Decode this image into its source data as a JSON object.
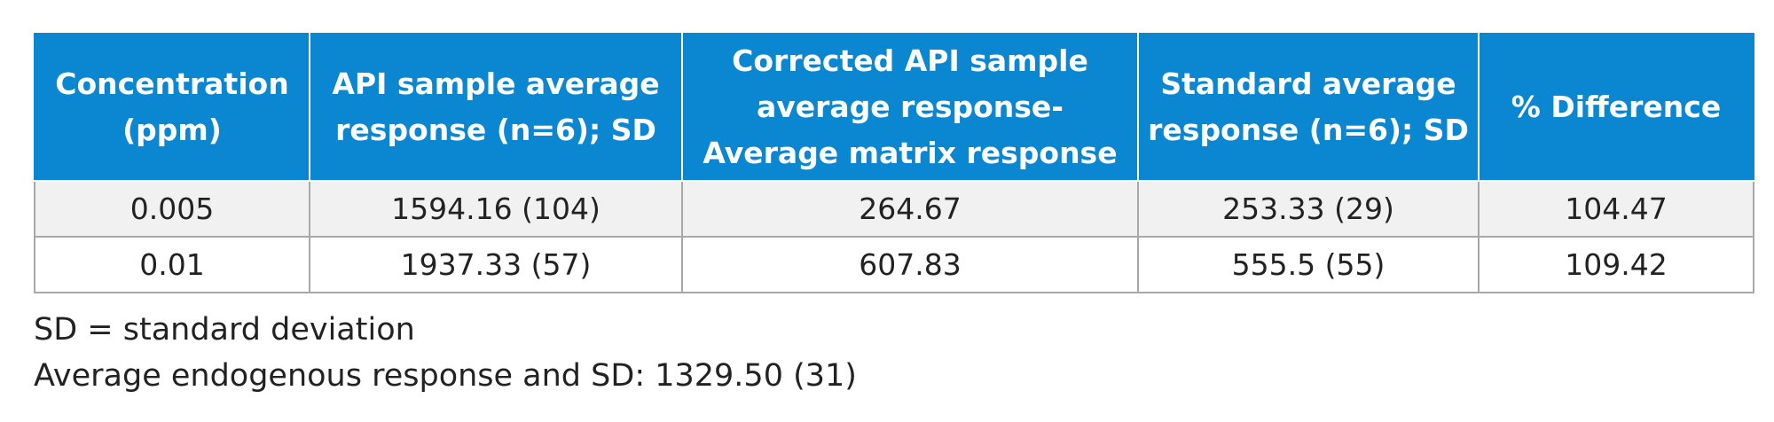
{
  "table": {
    "headers": [
      "Concentration (ppm)",
      "API sample average response (n=6); SD",
      "Corrected API sample average response- Average matrix response",
      "Standard average response (n=6); SD",
      "% Difference"
    ],
    "rows": [
      [
        "0.005",
        "1594.16 (104)",
        "264.67",
        "253.33 (29)",
        "104.47"
      ],
      [
        "0.01",
        "1937.33 (57)",
        "607.83",
        "555.5 (55)",
        "109.42"
      ]
    ],
    "colors": {
      "header_bg": "#0a87d0",
      "header_text": "#ffffff",
      "row_shade": "#f1f1f2",
      "border": "#a8a8a8"
    }
  },
  "footnotes": {
    "sd": "SD = standard deviation",
    "endogenous": "Average endogenous response and SD: 1329.50 (31)"
  }
}
